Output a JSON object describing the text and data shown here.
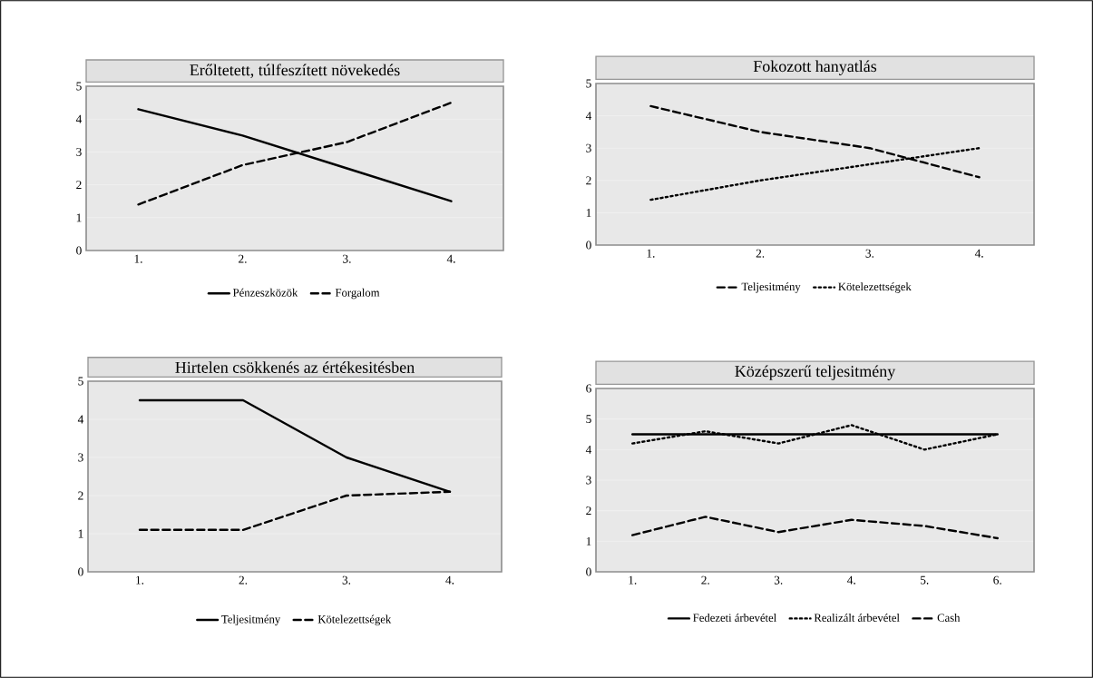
{
  "chart_data": [
    {
      "type": "line",
      "title": "Erőltetett, túlfeszített növekedés",
      "categories": [
        "1.",
        "2.",
        "3.",
        "4."
      ],
      "ylim": [
        0,
        5
      ],
      "yticks": [
        0,
        1,
        2,
        3,
        4,
        5
      ],
      "grid": "y",
      "legend": "bottom",
      "series": [
        {
          "name": "Pénzeszközök",
          "color": "#000000",
          "line_style": "solid",
          "values": [
            4.3,
            3.5,
            2.5,
            1.5
          ]
        },
        {
          "name": "Forgalom",
          "color": "#000000",
          "line_style": "dashed",
          "values": [
            1.4,
            2.6,
            3.3,
            4.5
          ]
        }
      ]
    },
    {
      "type": "line",
      "title": "Fokozott hanyatlás",
      "categories": [
        "1.",
        "2.",
        "3.",
        "4."
      ],
      "ylim": [
        0,
        5
      ],
      "yticks": [
        0,
        1,
        2,
        3,
        4,
        5
      ],
      "grid": "y",
      "legend": "bottom",
      "series": [
        {
          "name": "Teljesitmény",
          "color": "#000000",
          "line_style": "dashed",
          "values": [
            4.3,
            3.5,
            3.0,
            2.1
          ]
        },
        {
          "name": "Kötelezettségek",
          "color": "#000000",
          "line_style": "dotted",
          "values": [
            1.4,
            2.0,
            2.5,
            3.0
          ]
        }
      ]
    },
    {
      "type": "line",
      "title": "Hirtelen csökkenés az értékesitésben",
      "categories": [
        "1.",
        "2.",
        "3.",
        "4."
      ],
      "ylim": [
        0,
        5
      ],
      "yticks": [
        0,
        1,
        2,
        3,
        4,
        5
      ],
      "grid": "y",
      "legend": "bottom",
      "series": [
        {
          "name": "Teljesitmény",
          "color": "#000000",
          "line_style": "solid",
          "values": [
            4.5,
            4.5,
            3.0,
            2.1
          ]
        },
        {
          "name": "Kötelezettségek",
          "color": "#000000",
          "line_style": "dashed",
          "values": [
            1.1,
            1.1,
            2.0,
            2.1
          ]
        }
      ]
    },
    {
      "type": "line",
      "title": "Középszerű teljesitmény",
      "categories": [
        "1.",
        "2.",
        "3.",
        "4.",
        "5.",
        "6."
      ],
      "ylim": [
        0,
        6
      ],
      "yticks": [
        0,
        1,
        2,
        3,
        4,
        5,
        6
      ],
      "grid": "y",
      "legend": "bottom",
      "series": [
        {
          "name": "Fedezeti árbevétel",
          "color": "#000000",
          "line_style": "solid",
          "values": [
            4.5,
            4.5,
            4.5,
            4.5,
            4.5,
            4.5
          ]
        },
        {
          "name": "Realizált árbevétel",
          "color": "#000000",
          "line_style": "dotted",
          "values": [
            4.2,
            4.6,
            4.2,
            4.8,
            4.0,
            4.5
          ]
        },
        {
          "name": "Cash",
          "color": "#000000",
          "line_style": "dashed",
          "values": [
            1.2,
            1.8,
            1.3,
            1.7,
            1.5,
            1.1
          ]
        }
      ]
    }
  ]
}
